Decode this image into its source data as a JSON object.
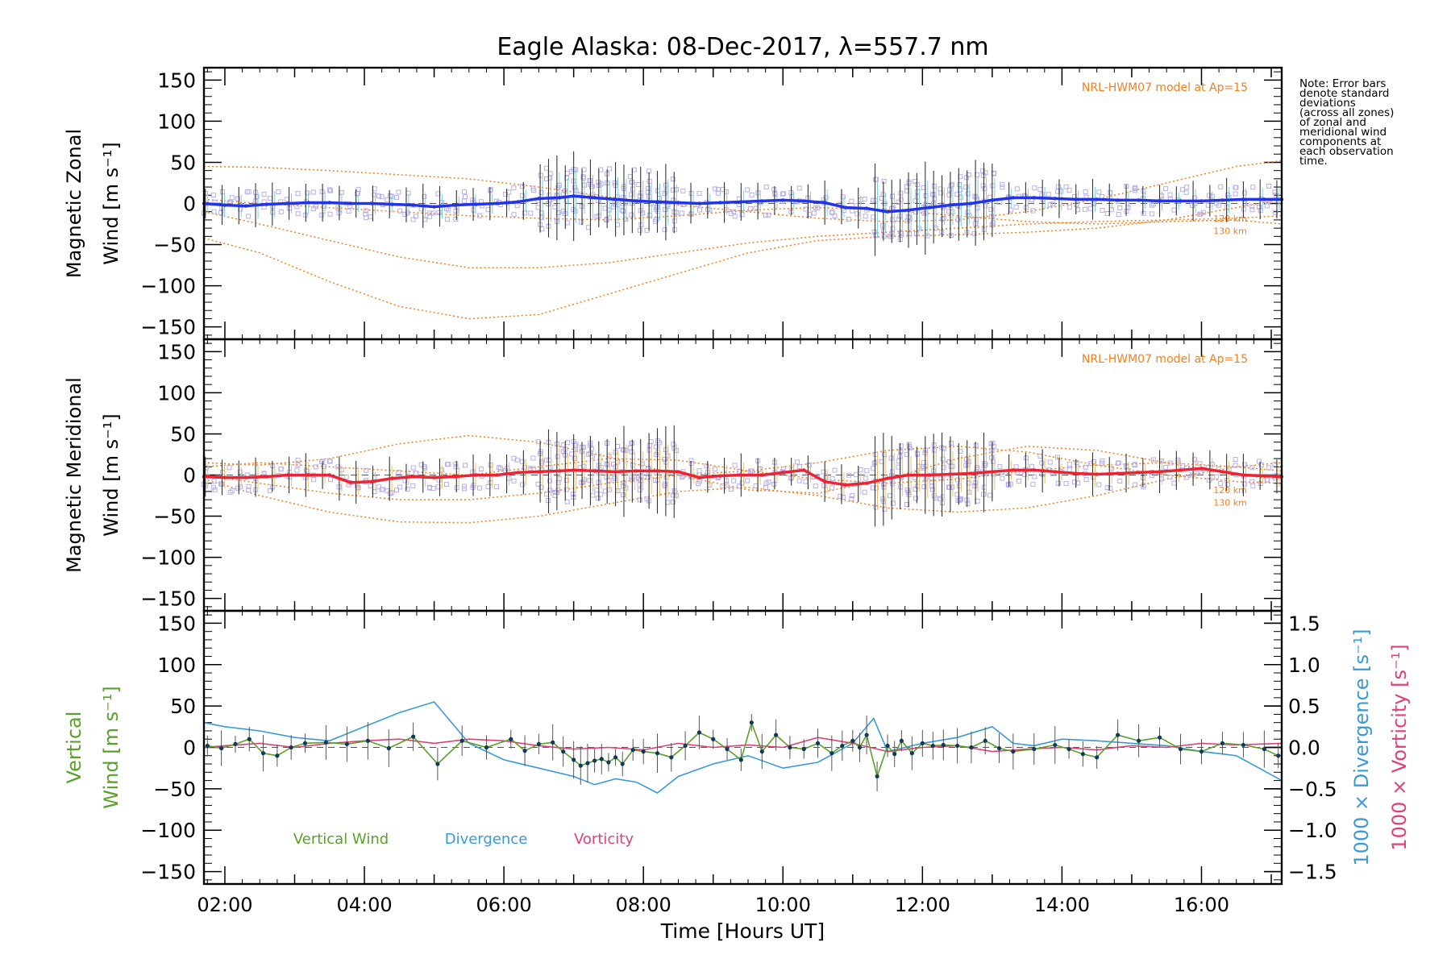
{
  "title": "Eagle Alaska: 08-Dec-2017, λ=557.7 nm",
  "note_lines": [
    "Note: Error bars",
    "denote standard",
    "deviations",
    "(across all zones)",
    "of zonal and",
    "meridional wind",
    "components at",
    "each observation",
    "time."
  ],
  "model_label": "NRL-HWM07 model at Ap=15",
  "model_altitudes": [
    "120 km",
    "130 km"
  ],
  "colors": {
    "zonal": "#2233ee",
    "meridional": "#ee2233",
    "model": "#f08020",
    "scatter": "#b7aee8",
    "vertical": "#5aa02a",
    "divergence": "#3a9ad6",
    "vorticity": "#e0407a"
  },
  "chart_data": [
    {
      "type": "line",
      "panel": "zonal",
      "ylabel": [
        "Magnetic Zonal",
        "Wind [m s⁻¹]"
      ],
      "ylim": [
        -165,
        165
      ],
      "yticks": [
        "150",
        "100",
        "50",
        "0",
        "−50",
        "−100",
        "−150"
      ],
      "xlim": [
        1.7,
        17.15
      ],
      "series": [
        {
          "x": [
            1.7,
            2.0,
            2.3,
            2.6,
            2.9,
            3.2,
            3.5,
            3.8,
            4.1,
            4.4,
            4.7,
            5.0,
            5.3,
            5.6,
            5.9,
            6.2,
            6.5,
            6.8,
            7.0,
            7.3,
            7.6,
            7.9,
            8.2,
            8.5,
            8.8,
            9.1,
            9.4,
            9.7,
            10.0,
            10.3,
            10.6,
            10.9,
            11.2,
            11.5,
            11.8,
            12.1,
            12.4,
            12.7,
            13.0,
            13.3,
            13.6,
            13.9,
            14.2,
            14.5,
            14.8,
            15.1,
            15.4,
            15.7,
            16.0,
            16.3,
            16.6,
            16.9,
            17.15
          ],
          "y": [
            0,
            -2,
            -3,
            -1,
            0,
            1,
            1,
            0,
            0,
            -1,
            -2,
            -4,
            -2,
            -1,
            0,
            2,
            6,
            7,
            9,
            7,
            5,
            3,
            2,
            1,
            0,
            1,
            2,
            3,
            4,
            3,
            1,
            -5,
            -6,
            -10,
            -8,
            -5,
            -2,
            0,
            4,
            7,
            7,
            6,
            5,
            5,
            4,
            4,
            3,
            3,
            3,
            4,
            5,
            5,
            5
          ]
        }
      ],
      "model_curves": [
        {
          "x": [
            1.7,
            2.5,
            3.5,
            4.5,
            5.5,
            6.5,
            7.5,
            8.5,
            9.5,
            10.5,
            11.5,
            12.5,
            13.5,
            14.5,
            15.5,
            16.5,
            17.15
          ],
          "y": [
            -42,
            -60,
            -95,
            -125,
            -140,
            -135,
            -110,
            -85,
            -60,
            -45,
            -40,
            -38,
            -35,
            -30,
            -20,
            -5,
            5
          ]
        },
        {
          "x": [
            1.7,
            2.5,
            3.5,
            4.5,
            5.5,
            6.5,
            7.5,
            8.5,
            9.5,
            10.5,
            11.5,
            12.5,
            13.5,
            14.5,
            15.5,
            16.5,
            17.15
          ],
          "y": [
            -10,
            -25,
            -45,
            -65,
            -78,
            -78,
            -72,
            -60,
            -48,
            -40,
            -35,
            -30,
            -25,
            -22,
            -20,
            -18,
            -15
          ]
        },
        {
          "x": [
            1.7,
            2.5,
            3.5,
            4.5,
            5.5,
            6.5,
            7.5,
            8.5,
            9.5,
            10.5,
            11.5,
            12.5,
            13.5,
            14.5,
            15.5,
            16.5,
            17.15
          ],
          "y": [
            45,
            44,
            40,
            35,
            30,
            20,
            8,
            -2,
            -10,
            -18,
            -22,
            -20,
            -10,
            5,
            25,
            45,
            52
          ]
        },
        {
          "x": [
            1.7,
            2.5,
            3.5,
            4.5,
            5.5,
            6.5,
            7.5,
            8.5,
            9.5,
            10.5,
            11.5,
            12.5,
            13.5,
            14.5,
            15.5,
            16.5,
            17.15
          ],
          "y": [
            5,
            0,
            -5,
            -10,
            -15,
            -18,
            -20,
            -15,
            -8,
            -5,
            -8,
            -15,
            -22,
            -25,
            -22,
            -20,
            -25
          ]
        }
      ]
    },
    {
      "type": "line",
      "panel": "meridional",
      "ylabel": [
        "Magnetic Meridional",
        "Wind [m s⁻¹]"
      ],
      "ylim": [
        -165,
        165
      ],
      "yticks": [
        "150",
        "100",
        "50",
        "0",
        "−50",
        "−100",
        "−150"
      ],
      "xlim": [
        1.7,
        17.15
      ],
      "series": [
        {
          "x": [
            1.7,
            2.0,
            2.3,
            2.6,
            2.9,
            3.2,
            3.5,
            3.8,
            4.1,
            4.4,
            4.7,
            5.0,
            5.3,
            5.6,
            5.9,
            6.2,
            6.5,
            6.8,
            7.0,
            7.3,
            7.6,
            7.9,
            8.2,
            8.5,
            8.8,
            9.1,
            9.4,
            9.7,
            10.0,
            10.3,
            10.6,
            10.9,
            11.2,
            11.5,
            11.8,
            12.1,
            12.4,
            12.7,
            13.0,
            13.3,
            13.6,
            13.9,
            14.2,
            14.5,
            14.8,
            15.1,
            15.4,
            15.7,
            16.0,
            16.3,
            16.6,
            16.9,
            17.15
          ],
          "y": [
            -2,
            -3,
            -3,
            -2,
            0,
            0,
            0,
            -9,
            -8,
            -4,
            -2,
            -3,
            -2,
            0,
            0,
            3,
            4,
            5,
            6,
            5,
            4,
            5,
            5,
            4,
            -3,
            -1,
            0,
            0,
            3,
            6,
            -8,
            -12,
            -10,
            -4,
            0,
            0,
            1,
            2,
            4,
            6,
            6,
            4,
            2,
            1,
            2,
            3,
            4,
            6,
            8,
            4,
            0,
            -1,
            -2
          ]
        }
      ],
      "model_curves": [
        {
          "x": [
            1.7,
            2.5,
            3.5,
            4.5,
            5.5,
            6.5,
            7.5,
            8.5,
            9.5,
            10.5,
            11.5,
            12.5,
            13.5,
            14.5,
            15.5,
            16.5,
            17.15
          ],
          "y": [
            -5,
            -25,
            -45,
            -57,
            -58,
            -50,
            -35,
            -20,
            -15,
            -25,
            -40,
            -45,
            -40,
            -25,
            -5,
            10,
            15
          ]
        },
        {
          "x": [
            1.7,
            2.5,
            3.5,
            4.5,
            5.5,
            6.5,
            7.5,
            8.5,
            9.5,
            10.5,
            11.5,
            12.5,
            13.5,
            14.5,
            15.5,
            16.5,
            17.15
          ],
          "y": [
            15,
            12,
            20,
            38,
            48,
            40,
            22,
            0,
            -18,
            -22,
            -5,
            20,
            35,
            30,
            15,
            0,
            -5
          ]
        },
        {
          "x": [
            1.7,
            2.5,
            3.5,
            4.5,
            5.5,
            6.5,
            7.5,
            8.5,
            9.5,
            10.5,
            11.5,
            12.5,
            13.5,
            14.5,
            15.5,
            16.5,
            17.15
          ],
          "y": [
            0,
            -10,
            -22,
            -30,
            -30,
            -22,
            -10,
            0,
            5,
            15,
            30,
            35,
            28,
            12,
            0,
            -8,
            -10
          ]
        },
        {
          "x": [
            1.7,
            2.5,
            3.5,
            4.5,
            5.5,
            6.5,
            7.5,
            8.5,
            9.5,
            10.5,
            11.5,
            12.5,
            13.5,
            14.5,
            15.5,
            16.5,
            17.15
          ],
          "y": [
            10,
            15,
            10,
            5,
            0,
            10,
            20,
            18,
            5,
            -5,
            -10,
            -5,
            5,
            12,
            15,
            10,
            5
          ]
        }
      ]
    },
    {
      "type": "line",
      "panel": "vertical",
      "xlabel": "Time [Hours UT]",
      "xticks": [
        "02:00",
        "04:00",
        "06:00",
        "08:00",
        "10:00",
        "12:00",
        "14:00",
        "16:00"
      ],
      "xtick_values": [
        2,
        4,
        6,
        8,
        10,
        12,
        14,
        16
      ],
      "xlim": [
        1.7,
        17.15
      ],
      "ylabel": [
        "Vertical",
        "Wind [m s⁻¹]"
      ],
      "ylim": [
        -165,
        165
      ],
      "yticks": [
        "150",
        "100",
        "50",
        "0",
        "−50",
        "−100",
        "−150"
      ],
      "y2label_divergence": "1000 × Divergence [s⁻¹]",
      "y2label_vorticity": "1000 × Vorticity [s⁻¹]",
      "y2lim": [
        -1.65,
        1.65
      ],
      "y2ticks": [
        "1.5",
        "1.0",
        "0.5",
        "0.0",
        "−0.5",
        "−1.0",
        "−1.5"
      ],
      "legend": [
        "Vertical Wind",
        "Divergence",
        "Vorticity"
      ],
      "series": [
        {
          "name": "Vertical Wind",
          "axis": "left",
          "x": [
            1.75,
            1.95,
            2.15,
            2.35,
            2.55,
            2.75,
            2.95,
            3.15,
            3.45,
            3.75,
            4.05,
            4.35,
            4.7,
            5.05,
            5.4,
            5.75,
            6.1,
            6.3,
            6.5,
            6.7,
            6.85,
            7.0,
            7.1,
            7.2,
            7.3,
            7.4,
            7.5,
            7.6,
            7.7,
            7.85,
            8.0,
            8.2,
            8.4,
            8.6,
            8.8,
            9.0,
            9.2,
            9.4,
            9.55,
            9.7,
            9.9,
            10.1,
            10.3,
            10.5,
            10.7,
            10.85,
            11.0,
            11.1,
            11.2,
            11.35,
            11.5,
            11.6,
            11.7,
            11.85,
            12.0,
            12.15,
            12.3,
            12.5,
            12.7,
            12.9,
            13.1,
            13.3,
            13.6,
            13.9,
            14.1,
            14.3,
            14.5,
            14.8,
            15.1,
            15.4,
            15.7,
            16.0,
            16.3,
            16.6,
            16.9,
            17.1
          ],
          "y": [
            2,
            -1,
            4,
            10,
            -7,
            -10,
            0,
            5,
            6,
            4,
            8,
            -1,
            13,
            -20,
            8,
            0,
            10,
            -4,
            4,
            6,
            -5,
            -15,
            -22,
            -19,
            -16,
            -14,
            -18,
            -12,
            -20,
            -3,
            -5,
            -7,
            -12,
            2,
            18,
            10,
            -2,
            -15,
            30,
            -5,
            15,
            0,
            -2,
            5,
            -7,
            2,
            8,
            0,
            15,
            -35,
            2,
            -8,
            8,
            -7,
            5,
            2,
            3,
            2,
            0,
            8,
            -1,
            -5,
            -2,
            3,
            -2,
            -8,
            -12,
            15,
            8,
            12,
            -2,
            -5,
            5,
            3,
            -2,
            -10
          ]
        },
        {
          "name": "Divergence",
          "axis": "right",
          "x": [
            1.7,
            2.0,
            2.5,
            3.0,
            3.5,
            4.0,
            4.5,
            5.0,
            5.5,
            6.0,
            6.5,
            7.0,
            7.3,
            7.6,
            7.9,
            8.2,
            8.5,
            9.0,
            9.5,
            10.0,
            10.5,
            11.0,
            11.3,
            11.5,
            12.0,
            12.5,
            13.0,
            13.3,
            13.6,
            14.0,
            14.5,
            15.0,
            15.5,
            16.0,
            16.5,
            17.15
          ],
          "y": [
            0.3,
            0.25,
            0.2,
            0.12,
            0.08,
            0.25,
            0.42,
            0.55,
            0.05,
            -0.15,
            -0.25,
            -0.35,
            -0.45,
            -0.38,
            -0.42,
            -0.55,
            -0.35,
            -0.2,
            -0.1,
            -0.25,
            -0.18,
            0.05,
            0.35,
            -0.05,
            0.05,
            0.12,
            0.25,
            0.05,
            0.02,
            0.1,
            0.08,
            0.05,
            0.02,
            -0.05,
            -0.1,
            -0.4
          ]
        },
        {
          "name": "Vorticity",
          "axis": "right",
          "x": [
            1.7,
            2.0,
            2.5,
            3.0,
            3.5,
            4.0,
            4.5,
            5.0,
            5.5,
            6.0,
            6.5,
            7.0,
            7.5,
            8.0,
            8.5,
            9.0,
            9.5,
            10.0,
            10.5,
            11.0,
            11.5,
            12.0,
            12.5,
            13.0,
            13.5,
            14.0,
            14.5,
            15.0,
            15.5,
            16.0,
            16.5,
            17.15
          ],
          "y": [
            0.0,
            0.02,
            0.05,
            0.0,
            0.05,
            0.08,
            0.1,
            0.05,
            0.1,
            0.08,
            0.02,
            -0.02,
            0.0,
            -0.03,
            0.05,
            0.0,
            0.03,
            0.0,
            0.12,
            0.05,
            -0.05,
            0.0,
            0.02,
            -0.05,
            -0.02,
            0.0,
            -0.03,
            0.02,
            0.0,
            0.05,
            0.03,
            0.05
          ]
        }
      ]
    }
  ]
}
